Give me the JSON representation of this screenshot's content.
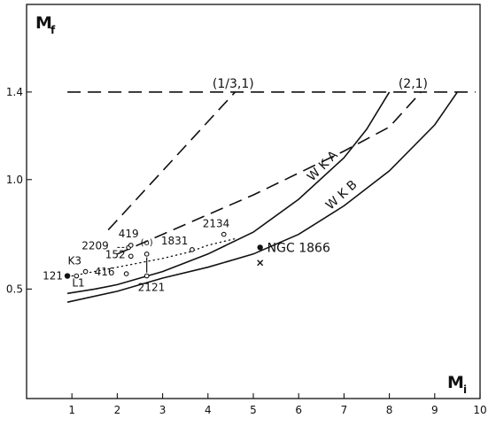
{
  "chart_data": {
    "type": "scatter",
    "title": "",
    "xlabel": "M",
    "xlabel_sub": "i",
    "ylabel": "M",
    "ylabel_sub": "f",
    "xlim": [
      0,
      10
    ],
    "ylim": [
      0,
      1.8
    ],
    "grid": false,
    "x_ticks": [
      1,
      2,
      3,
      4,
      5,
      6,
      7,
      8,
      9,
      10
    ],
    "y_ticks": [
      {
        "value": 0.5,
        "label": "0.5"
      },
      {
        "value": 1.0,
        "label": "1.0"
      },
      {
        "value": 1.4,
        "label": "1.4"
      }
    ],
    "lines": [
      {
        "name": "",
        "style": "dashed",
        "points": [
          [
            0.9,
            1.4
          ],
          [
            9.9,
            1.4
          ]
        ]
      },
      {
        "name": "(1/3,1)",
        "style": "dashed",
        "points": [
          [
            1.8,
            0.77
          ],
          [
            4.6,
            1.4
          ]
        ]
      },
      {
        "name": "(2,1)",
        "style": "dashed",
        "points": [
          [
            2.0,
            0.66
          ],
          [
            3.0,
            0.75
          ],
          [
            4.0,
            0.84
          ],
          [
            5.0,
            0.93
          ],
          [
            6.0,
            1.03
          ],
          [
            7.0,
            1.13
          ],
          [
            8.0,
            1.24
          ],
          [
            8.7,
            1.4
          ]
        ]
      },
      {
        "name": "W K A",
        "style": "solid",
        "points": [
          [
            0.9,
            0.48
          ],
          [
            1.5,
            0.5
          ],
          [
            2.0,
            0.52
          ],
          [
            3.0,
            0.58
          ],
          [
            4.0,
            0.66
          ],
          [
            5.0,
            0.76
          ],
          [
            6.0,
            0.91
          ],
          [
            7.0,
            1.1
          ],
          [
            7.5,
            1.23
          ],
          [
            8.0,
            1.4
          ]
        ]
      },
      {
        "name": "W K B",
        "style": "solid",
        "points": [
          [
            0.9,
            0.44
          ],
          [
            2.0,
            0.49
          ],
          [
            3.0,
            0.55
          ],
          [
            4.0,
            0.6
          ],
          [
            5.0,
            0.66
          ],
          [
            6.0,
            0.75
          ],
          [
            7.0,
            0.88
          ],
          [
            8.0,
            1.04
          ],
          [
            9.0,
            1.25
          ],
          [
            9.5,
            1.4
          ]
        ]
      },
      {
        "name": "",
        "style": "dotted",
        "points": [
          [
            1.0,
            0.56
          ],
          [
            1.5,
            0.58
          ],
          [
            2.0,
            0.6
          ],
          [
            2.5,
            0.62
          ],
          [
            3.0,
            0.64
          ],
          [
            3.6,
            0.67
          ],
          [
            4.0,
            0.7
          ],
          [
            4.6,
            0.73
          ]
        ]
      }
    ],
    "points": [
      {
        "label": "121",
        "x": 0.9,
        "y": 0.56,
        "marker": "filled"
      },
      {
        "label": "L1",
        "x": 1.1,
        "y": 0.56,
        "marker": "open"
      },
      {
        "label": "K3",
        "x": 1.3,
        "y": 0.58,
        "marker": "open"
      },
      {
        "label": "416",
        "x": 2.2,
        "y": 0.57,
        "marker": "open"
      },
      {
        "label": "2121",
        "x": 2.65,
        "y": 0.56,
        "marker": "open"
      },
      {
        "label": "152",
        "x": 2.3,
        "y": 0.65,
        "marker": "open"
      },
      {
        "label": "2209",
        "x": 2.25,
        "y": 0.69,
        "marker": "open"
      },
      {
        "label": "419",
        "x": 2.3,
        "y": 0.7,
        "marker": "open"
      },
      {
        "label": "(o)",
        "x": 2.65,
        "y": 0.66,
        "marker": "open"
      },
      {
        "label": "1831",
        "x": 3.65,
        "y": 0.68,
        "marker": "open"
      },
      {
        "label": "2134",
        "x": 4.35,
        "y": 0.75,
        "marker": "open"
      },
      {
        "label": "NGC 1866",
        "x": 5.15,
        "y": 0.69,
        "marker": "filled"
      },
      {
        "label": "",
        "x": 5.15,
        "y": 0.62,
        "marker": "cross"
      }
    ],
    "annotations": [
      "(1/3,1)",
      "(2,1)",
      "W K A",
      "W K B"
    ]
  }
}
